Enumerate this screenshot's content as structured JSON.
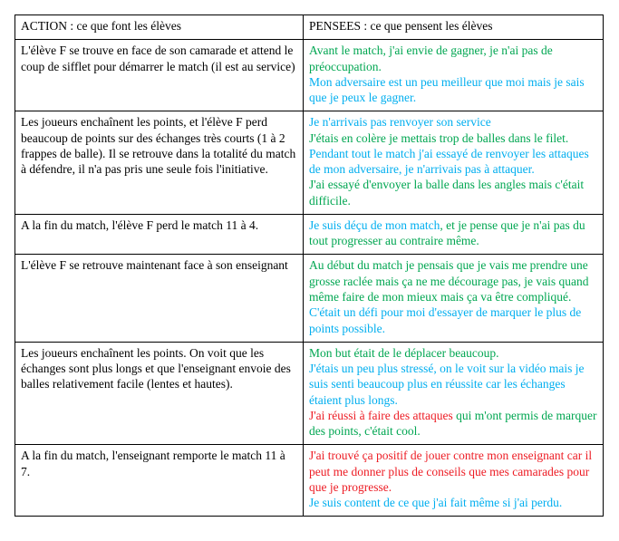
{
  "colors": {
    "black": "#000000",
    "green": "#00a651",
    "cyan": "#00aeef",
    "red": "#ed1c24"
  },
  "columns": {
    "action": "ACTION : ce que font les élèves",
    "pensees": "PENSEES : ce que pensent les élèves"
  },
  "rows": [
    {
      "action": [
        {
          "text": "L'élève F se trouve en face de son camarade et attend le coup de sifflet pour démarrer le match (il est au service)",
          "color": "black"
        }
      ],
      "pensees": [
        {
          "text": "Avant le match, j'ai envie de gagner, je n'ai pas de préoccupation.",
          "color": "green"
        },
        {
          "text": "\n",
          "color": "green"
        },
        {
          "text": "Mon adversaire est un peu meilleur que moi mais je sais que je peux le gagner.",
          "color": "cyan"
        }
      ]
    },
    {
      "action": [
        {
          "text": "Les joueurs enchaînent les points, et l'élève F perd beaucoup de points sur des échanges très courts (1 à 2 frappes de balle). Il se retrouve dans la totalité du match à défendre, il n'a pas pris une seule fois l'initiative.",
          "color": "black"
        }
      ],
      "pensees": [
        {
          "text": "Je n'arrivais pas renvoyer son service",
          "color": "cyan"
        },
        {
          "text": "\n",
          "color": "cyan"
        },
        {
          "text": "J'étais en colère je mettais trop de balles dans le filet.",
          "color": "green"
        },
        {
          "text": "\n",
          "color": "green"
        },
        {
          "text": "Pendant tout le match j'ai essayé de renvoyer les attaques de mon adversaire, je n'arrivais pas à attaquer.",
          "color": "cyan"
        },
        {
          "text": "\n",
          "color": "cyan"
        },
        {
          "text": "J'ai essayé d'envoyer la balle dans les angles mais c'était difficile.",
          "color": "green"
        }
      ]
    },
    {
      "action": [
        {
          "text": "A la fin du match, l'élève F perd le match 11 à 4.",
          "color": "black"
        }
      ],
      "pensees": [
        {
          "text": "Je suis déçu de mon match",
          "color": "cyan"
        },
        {
          "text": ", et je pense que je n'ai pas du tout progresser au contraire même.",
          "color": "green"
        }
      ]
    },
    {
      "action": [
        {
          "text": "L'élève F se retrouve maintenant face à son enseignant",
          "color": "black"
        }
      ],
      "pensees": [
        {
          "text": "Au début du match je pensais que je vais me prendre une grosse raclée mais ça ne me décourage pas, je vais quand même faire de mon mieux mais ça va être compliqué.",
          "color": "green"
        },
        {
          "text": "\n",
          "color": "green"
        },
        {
          "text": "C'était un défi pour moi d'essayer de marquer le plus de points possible.",
          "color": "cyan"
        }
      ]
    },
    {
      "action": [
        {
          "text": "Les joueurs enchaînent les points. On voit que les échanges sont plus longs et que l'enseignant envoie des balles relativement facile (lentes et hautes).",
          "color": "black"
        }
      ],
      "pensees": [
        {
          "text": "Mon but était de le déplacer beaucoup.",
          "color": "green"
        },
        {
          "text": "\n",
          "color": "green"
        },
        {
          "text": "J'étais un peu plus stressé, on le voit sur la vidéo mais je suis senti beaucoup plus en réussite car les échanges étaient plus longs.",
          "color": "cyan"
        },
        {
          "text": "\n",
          "color": "cyan"
        },
        {
          "text": "J'ai réussi à faire des attaques",
          "color": "red"
        },
        {
          "text": " qui m'ont permis de marquer des points, c'était cool.",
          "color": "green"
        }
      ]
    },
    {
      "action": [
        {
          "text": "A la fin du match, l'enseignant remporte le match 11 à 7.",
          "color": "black"
        }
      ],
      "pensees": [
        {
          "text": "J'ai trouvé ça positif de jouer contre mon enseignant car il peut me donner plus de conseils que mes camarades pour que je progresse.",
          "color": "red"
        },
        {
          "text": "\n",
          "color": "red"
        },
        {
          "text": "Je suis content de ce que j'ai fait même si j'ai perdu.",
          "color": "cyan"
        }
      ]
    }
  ]
}
